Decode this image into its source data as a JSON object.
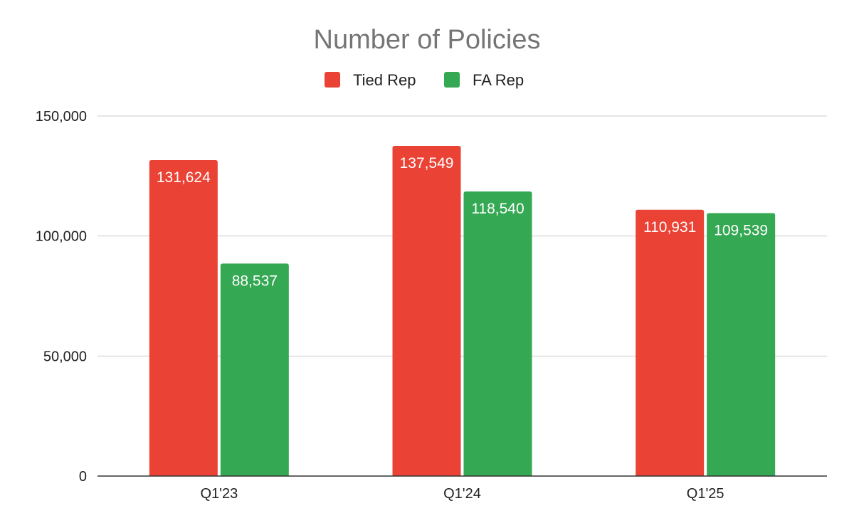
{
  "chart_data": {
    "type": "bar",
    "title": "Number of Policies",
    "categories": [
      "Q1'23",
      "Q1'24",
      "Q1'25"
    ],
    "series": [
      {
        "name": "Tied Rep",
        "color": "#EA4335",
        "values": [
          131624,
          137549,
          110931
        ],
        "labels": [
          "131,624",
          "137,549",
          "110,931"
        ]
      },
      {
        "name": "FA Rep",
        "color": "#34A853",
        "values": [
          88537,
          118540,
          109539
        ],
        "labels": [
          "88,537",
          "118,540",
          "109,539"
        ]
      }
    ],
    "ylim": [
      0,
      150000
    ],
    "yticks": [
      0,
      50000,
      100000,
      150000
    ],
    "ytick_labels": [
      "0",
      "50,000",
      "100,000",
      "150,000"
    ],
    "grid": true,
    "legend_position": "top-center",
    "gridline_color": "#CCCCCC",
    "axis_color": "#333333"
  }
}
